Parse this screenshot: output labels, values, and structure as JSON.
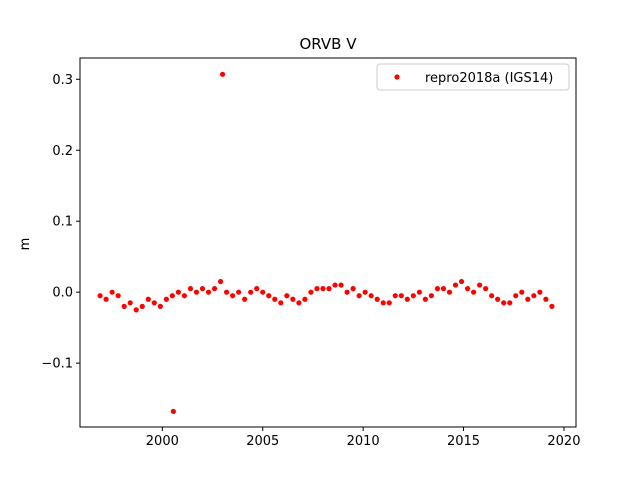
{
  "chart_data": {
    "type": "scatter",
    "title": "ORVB V",
    "xlabel": "",
    "ylabel": "m",
    "xlim": [
      1995.9,
      2020.6
    ],
    "ylim": [
      -0.19,
      0.33
    ],
    "x_ticks": [
      2000,
      2005,
      2010,
      2015,
      2020
    ],
    "x_tick_labels": [
      "2000",
      "2005",
      "2010",
      "2015",
      "2020"
    ],
    "y_ticks": [
      -0.1,
      0.0,
      0.1,
      0.2,
      0.3
    ],
    "y_tick_labels": [
      "−0.1",
      "0.0",
      "0.1",
      "0.2",
      "0.3"
    ],
    "grid": false,
    "legend_position": "top-right",
    "series": [
      {
        "name": "repro2018a (IGS14)",
        "color": "#ff0000",
        "marker": "circle",
        "x": [
          1996.9,
          1997.2,
          1997.5,
          1997.8,
          1998.1,
          1998.4,
          1998.7,
          1999.0,
          1999.3,
          1999.6,
          1999.9,
          2000.2,
          2000.5,
          2000.8,
          2001.1,
          2001.4,
          2001.7,
          2002.0,
          2002.3,
          2002.6,
          2002.9,
          2003.2,
          2003.5,
          2003.8,
          2004.1,
          2004.4,
          2004.7,
          2005.0,
          2005.3,
          2005.6,
          2005.9,
          2006.2,
          2006.5,
          2006.8,
          2007.1,
          2007.4,
          2007.7,
          2008.0,
          2008.3,
          2008.6,
          2008.9,
          2009.2,
          2009.5,
          2009.8,
          2010.1,
          2010.4,
          2010.7,
          2011.0,
          2011.3,
          2011.6,
          2011.9,
          2012.2,
          2012.5,
          2012.8,
          2013.1,
          2013.4,
          2013.7,
          2014.0,
          2014.3,
          2014.6,
          2014.9,
          2015.2,
          2015.5,
          2015.8,
          2016.1,
          2016.4,
          2016.7,
          2017.0,
          2017.3,
          2017.6,
          2017.9,
          2018.2,
          2018.5,
          2018.8,
          2019.1,
          2019.4,
          2000.55,
          2003.0
        ],
        "y": [
          -0.005,
          -0.01,
          0.0,
          -0.005,
          -0.02,
          -0.015,
          -0.025,
          -0.02,
          -0.01,
          -0.015,
          -0.02,
          -0.01,
          -0.005,
          0.0,
          -0.005,
          0.005,
          0.0,
          0.005,
          0.0,
          0.005,
          0.015,
          0.0,
          -0.005,
          0.0,
          -0.01,
          0.0,
          0.005,
          0.0,
          -0.005,
          -0.01,
          -0.015,
          -0.005,
          -0.01,
          -0.015,
          -0.01,
          0.0,
          0.005,
          0.005,
          0.005,
          0.01,
          0.01,
          0.0,
          0.005,
          -0.005,
          0.0,
          -0.005,
          -0.01,
          -0.015,
          -0.015,
          -0.005,
          -0.005,
          -0.01,
          -0.005,
          0.0,
          -0.01,
          -0.005,
          0.005,
          0.005,
          0.0,
          0.01,
          0.015,
          0.005,
          0.0,
          0.01,
          0.005,
          -0.005,
          -0.01,
          -0.015,
          -0.015,
          -0.005,
          0.0,
          -0.01,
          -0.005,
          0.0,
          -0.01,
          -0.02,
          -0.168,
          0.307
        ]
      }
    ]
  }
}
